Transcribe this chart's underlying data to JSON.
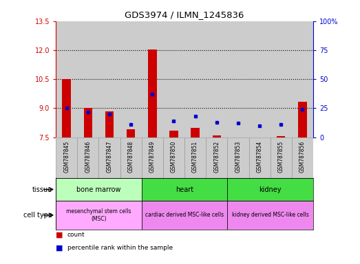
{
  "title": "GDS3974 / ILMN_1245836",
  "samples": [
    "GSM787845",
    "GSM787846",
    "GSM787847",
    "GSM787848",
    "GSM787849",
    "GSM787850",
    "GSM787851",
    "GSM787852",
    "GSM787853",
    "GSM787854",
    "GSM787855",
    "GSM787856"
  ],
  "red_values": [
    10.5,
    9.0,
    8.85,
    7.9,
    12.05,
    7.85,
    8.0,
    7.6,
    7.5,
    7.45,
    7.55,
    9.35
  ],
  "blue_values": [
    25.0,
    22.0,
    20.0,
    11.0,
    37.0,
    14.0,
    18.0,
    13.0,
    12.0,
    10.0,
    11.0,
    24.0
  ],
  "ylim_left": [
    7.5,
    13.5
  ],
  "ylim_right": [
    0,
    100
  ],
  "yticks_left": [
    7.5,
    9.0,
    10.5,
    12.0,
    13.5
  ],
  "yticks_right": [
    0,
    25,
    50,
    75,
    100
  ],
  "ytick_labels_right": [
    "0",
    "25",
    "50",
    "75",
    "100%"
  ],
  "hlines": [
    9.0,
    10.5,
    12.0
  ],
  "tissue_groups": [
    {
      "label": "bone marrow",
      "start": 0,
      "end": 4,
      "color": "#bbffbb"
    },
    {
      "label": "heart",
      "start": 4,
      "end": 8,
      "color": "#44dd44"
    },
    {
      "label": "kidney",
      "start": 8,
      "end": 12,
      "color": "#44dd44"
    }
  ],
  "cell_type_groups": [
    {
      "label": "mesenchymal stem cells\n(MSC)",
      "start": 0,
      "end": 4,
      "color": "#ffaaff"
    },
    {
      "label": "cardiac derived MSC-like cells",
      "start": 4,
      "end": 8,
      "color": "#ee88ee"
    },
    {
      "label": "kidney derived MSC-like cells",
      "start": 8,
      "end": 12,
      "color": "#ee88ee"
    }
  ],
  "tissue_row_label": "tissue",
  "cell_type_row_label": "cell type",
  "legend_red": "count",
  "legend_blue": "percentile rank within the sample",
  "bar_width": 0.4,
  "red_color": "#cc0000",
  "blue_color": "#0000cc",
  "left_axis_color": "#cc0000",
  "right_axis_color": "#0000cc",
  "background_color": "#ffffff",
  "bar_bg_color": "#cccccc"
}
